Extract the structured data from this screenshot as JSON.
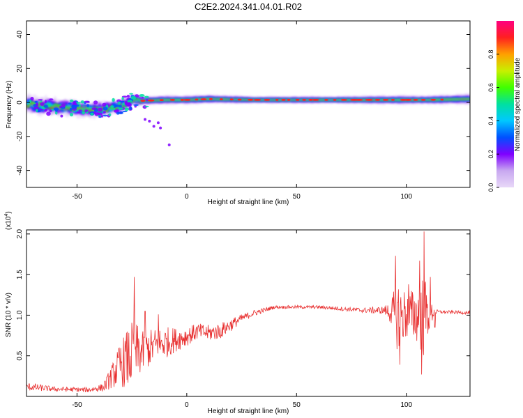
{
  "figure": {
    "title": "C2E2.2024.341.04.01.R02"
  },
  "chart_data": [
    {
      "type": "heatmap",
      "xlabel": "Height of straight line (km)",
      "ylabel": "Frequency (Hz)",
      "xlim": [
        -73,
        129
      ],
      "ylim": [
        -50,
        48
      ],
      "xticks": [
        -50,
        0,
        50,
        100
      ],
      "yticks": [
        -40,
        -20,
        0,
        20,
        40
      ],
      "colorbar": {
        "label": "Normalized spectral amplitude",
        "range": [
          0,
          1
        ],
        "ticks": [
          "0.0",
          "0.2",
          "0.4",
          "0.6",
          "0.8"
        ],
        "colors": [
          "#e8d8f8",
          "#c8a8f0",
          "#7f00ff",
          "#0050ff",
          "#00c8ff",
          "#00e0a0",
          "#40ff00",
          "#c8f000",
          "#ffa000",
          "#ff2020",
          "#ff0080"
        ]
      },
      "ridge": {
        "x": [
          -73,
          -65,
          -55,
          -45,
          -38,
          -30,
          -25,
          -20,
          -10,
          0,
          10,
          30,
          60,
          90,
          110,
          129
        ],
        "frequency": [
          -1,
          -2,
          -3,
          -4,
          -4,
          -2,
          1,
          1,
          1.5,
          1.5,
          2,
          1.5,
          1.5,
          1.5,
          1.5,
          2
        ],
        "width": [
          10,
          10,
          9,
          9,
          8,
          7,
          6,
          5,
          5,
          5,
          5,
          4,
          4,
          5,
          5,
          6
        ]
      },
      "outliers": [
        [
          -19,
          -10
        ],
        [
          -17,
          -11
        ],
        [
          -15,
          -14
        ],
        [
          -13,
          -12
        ],
        [
          -12,
          -15
        ],
        [
          -8,
          -25
        ],
        [
          -62,
          -5
        ],
        [
          -57,
          -8
        ]
      ]
    },
    {
      "type": "line",
      "xlabel": "Height of straight line (km)",
      "ylabel": "SNR (10 * v/v)",
      "multiplier": "(x10",
      "multiplier_exp": "4",
      "xlim": [
        -73,
        129
      ],
      "ylim": [
        0.0,
        2.05
      ],
      "xticks": [
        -50,
        0,
        50,
        100
      ],
      "yticks": [
        "0.5",
        "1.0",
        "1.5",
        "2.0"
      ],
      "color": "#e83030",
      "envelope": {
        "x": [
          -73,
          -60,
          -45,
          -38,
          -34,
          -30,
          -26,
          -24,
          -20,
          -15,
          -10,
          -5,
          0,
          5,
          10,
          15,
          20,
          25,
          30,
          40,
          60,
          80,
          90,
          93,
          96,
          100,
          105,
          108,
          110,
          113,
          116,
          129
        ],
        "mean": [
          0.12,
          0.09,
          0.08,
          0.11,
          0.25,
          0.4,
          0.48,
          0.55,
          0.55,
          0.62,
          0.66,
          0.7,
          0.74,
          0.8,
          0.78,
          0.8,
          0.88,
          0.96,
          1.02,
          1.1,
          1.1,
          1.06,
          1.06,
          1.04,
          1.0,
          1.0,
          1.0,
          1.0,
          1.0,
          1.04,
          1.04,
          1.03
        ],
        "amp": [
          0.05,
          0.03,
          0.03,
          0.05,
          0.15,
          0.28,
          0.4,
          0.4,
          0.25,
          0.22,
          0.2,
          0.15,
          0.12,
          0.1,
          0.1,
          0.1,
          0.08,
          0.05,
          0.04,
          0.02,
          0.02,
          0.03,
          0.05,
          0.15,
          0.45,
          0.3,
          0.35,
          0.55,
          0.25,
          0.03,
          0.02,
          0.02
        ]
      },
      "peaks": [
        [
          -24,
          1.47
        ],
        [
          -19,
          1.05
        ],
        [
          -13,
          1.01
        ],
        [
          95,
          1.73
        ],
        [
          97,
          0.39
        ],
        [
          101,
          1.38
        ],
        [
          106,
          1.67
        ],
        [
          107,
          0.27
        ],
        [
          108,
          2.03
        ],
        [
          111,
          1.47
        ],
        [
          113,
          0.85
        ]
      ]
    }
  ]
}
